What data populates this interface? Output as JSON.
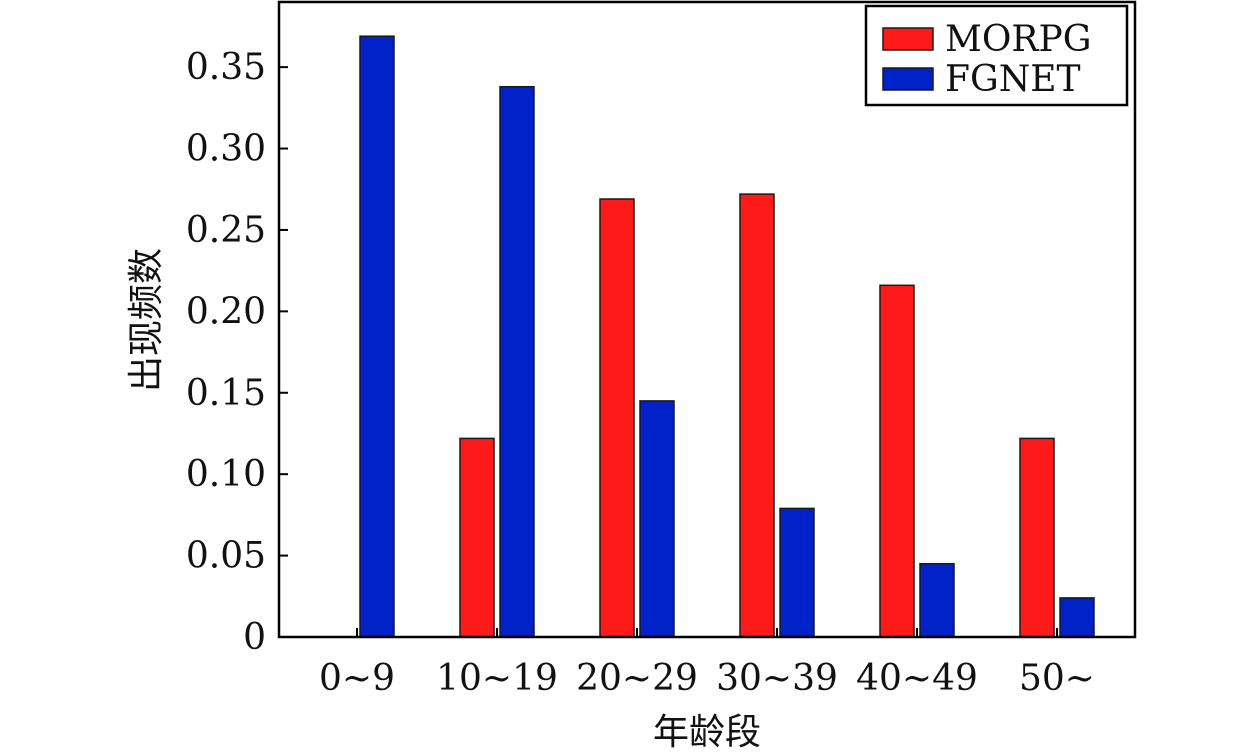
{
  "chart_data": {
    "type": "bar",
    "xlabel": "年龄段",
    "ylabel": "出现频数",
    "categories": [
      "0~9",
      "10~19",
      "20~29",
      "30~39",
      "40~49",
      "50~"
    ],
    "series": [
      {
        "name": "MORPG",
        "color": "#ff1a1a",
        "values": [
          0,
          0.122,
          0.269,
          0.272,
          0.216,
          0.122
        ]
      },
      {
        "name": "FGNET",
        "color": "#0022c8",
        "values": [
          0.369,
          0.338,
          0.145,
          0.079,
          0.045,
          0.024
        ]
      }
    ],
    "ylim": [
      0,
      0.39
    ],
    "yticks": [
      0,
      0.05,
      0.1,
      0.15,
      0.2,
      0.25,
      0.3,
      0.35
    ],
    "ytick_labels": [
      "0",
      "0.05",
      "0.10",
      "0.15",
      "0.20",
      "0.25",
      "0.30",
      "0.35"
    ],
    "grid": false,
    "legend_position": "top-right"
  }
}
